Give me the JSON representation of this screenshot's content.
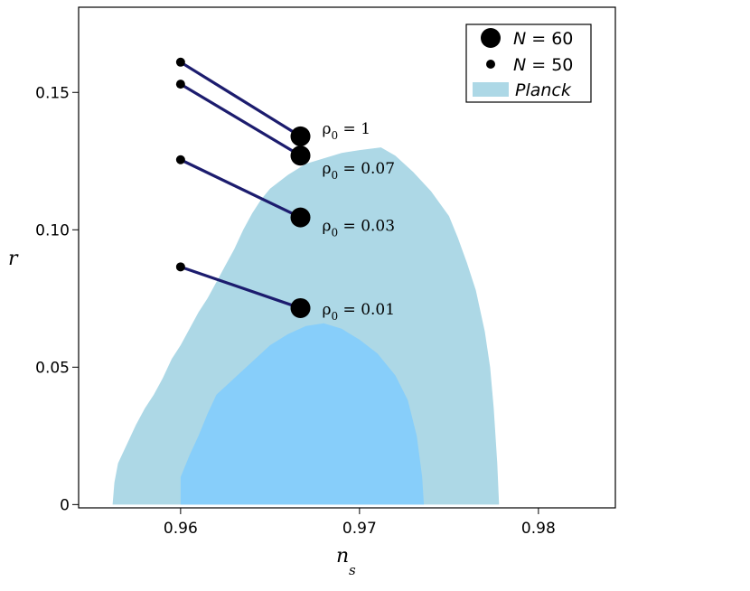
{
  "chart_data": {
    "type": "scatter",
    "xlabel": "n",
    "xlabel_sub": "s",
    "ylabel": "r",
    "xlim": [
      0.9543,
      0.9843
    ],
    "ylim": [
      -0.0012,
      0.181
    ],
    "xticks": [
      0.96,
      0.97,
      0.98
    ],
    "xtick_labels": [
      "0.96",
      "0.97",
      "0.98"
    ],
    "yticks": [
      0,
      0.05,
      0.1,
      0.15
    ],
    "ytick_labels": [
      "0",
      "0.05",
      "0.10",
      "0.15"
    ],
    "grid": false,
    "legend": {
      "placement": "top-right",
      "entries": [
        {
          "var": "N",
          "rest": " = 60",
          "marker": "large-dot"
        },
        {
          "var": "N",
          "rest": " = 50",
          "marker": "small-dot"
        },
        {
          "var": "Planck",
          "rest": "",
          "marker": "fill",
          "color": "#add8e6"
        }
      ]
    },
    "regions": [
      {
        "name": "Planck",
        "level": "outer",
        "color": "#add8e6",
        "points": [
          [
            0.9562,
            0.0
          ],
          [
            0.9563,
            0.008
          ],
          [
            0.9565,
            0.015
          ],
          [
            0.957,
            0.022
          ],
          [
            0.9575,
            0.029
          ],
          [
            0.958,
            0.035
          ],
          [
            0.9585,
            0.04
          ],
          [
            0.959,
            0.046
          ],
          [
            0.9595,
            0.053
          ],
          [
            0.96,
            0.058
          ],
          [
            0.9605,
            0.064
          ],
          [
            0.961,
            0.07
          ],
          [
            0.9615,
            0.075
          ],
          [
            0.962,
            0.081
          ],
          [
            0.9625,
            0.087
          ],
          [
            0.963,
            0.093
          ],
          [
            0.9635,
            0.1
          ],
          [
            0.964,
            0.106
          ],
          [
            0.9645,
            0.111
          ],
          [
            0.965,
            0.115
          ],
          [
            0.966,
            0.12
          ],
          [
            0.967,
            0.124
          ],
          [
            0.968,
            0.126
          ],
          [
            0.969,
            0.128
          ],
          [
            0.97,
            0.129
          ],
          [
            0.9712,
            0.13
          ],
          [
            0.972,
            0.127
          ],
          [
            0.973,
            0.121
          ],
          [
            0.974,
            0.114
          ],
          [
            0.975,
            0.105
          ],
          [
            0.9755,
            0.097
          ],
          [
            0.976,
            0.088
          ],
          [
            0.9765,
            0.078
          ],
          [
            0.977,
            0.063
          ],
          [
            0.9773,
            0.05
          ],
          [
            0.9775,
            0.035
          ],
          [
            0.9777,
            0.015
          ],
          [
            0.9778,
            0.0
          ]
        ]
      },
      {
        "name": "Planck",
        "level": "inner",
        "color": "#87cefa",
        "points": [
          [
            0.96,
            0.0
          ],
          [
            0.96,
            0.01
          ],
          [
            0.9605,
            0.018
          ],
          [
            0.961,
            0.025
          ],
          [
            0.9615,
            0.033
          ],
          [
            0.962,
            0.04
          ],
          [
            0.963,
            0.046
          ],
          [
            0.964,
            0.052
          ],
          [
            0.965,
            0.058
          ],
          [
            0.966,
            0.062
          ],
          [
            0.967,
            0.065
          ],
          [
            0.968,
            0.066
          ],
          [
            0.969,
            0.064
          ],
          [
            0.97,
            0.06
          ],
          [
            0.971,
            0.055
          ],
          [
            0.972,
            0.047
          ],
          [
            0.9727,
            0.038
          ],
          [
            0.9732,
            0.025
          ],
          [
            0.9735,
            0.01
          ],
          [
            0.9736,
            0.0
          ]
        ]
      }
    ],
    "series": [
      {
        "name": "N = 60",
        "values": [
          {
            "x": 0.9667,
            "y": 0.134,
            "label_pre": "ρ",
            "label_sub": "0",
            "label_post": " = 1"
          },
          {
            "x": 0.9667,
            "y": 0.127,
            "label_pre": "ρ",
            "label_sub": "0",
            "label_post": " = 0.07"
          },
          {
            "x": 0.9667,
            "y": 0.1045,
            "label_pre": "ρ",
            "label_sub": "0",
            "label_post": " = 0.03"
          },
          {
            "x": 0.9667,
            "y": 0.0715,
            "label_pre": "ρ",
            "label_sub": "0",
            "label_post": " = 0.01"
          }
        ]
      },
      {
        "name": "N = 50",
        "values": [
          {
            "x": 0.96,
            "y": 0.161
          },
          {
            "x": 0.96,
            "y": 0.153
          },
          {
            "x": 0.96,
            "y": 0.1255
          },
          {
            "x": 0.96,
            "y": 0.0865
          }
        ]
      }
    ],
    "line_color": "#1c1c6e"
  }
}
